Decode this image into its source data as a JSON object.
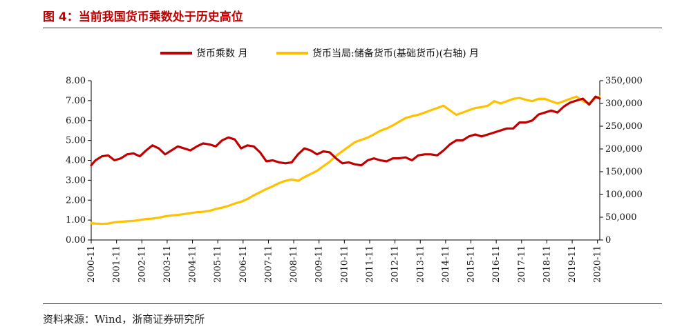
{
  "title": "图 4：当前我国货币乘数处于历史高位",
  "source": "资料来源：Wind，浙商证券研究所",
  "colors": {
    "multiplier": "#c00000",
    "base_money": "#ffc000",
    "title": "#c00000"
  },
  "chart_data": {
    "type": "line",
    "title": "图 4：当前我国货币乘数处于历史高位",
    "legend": [
      "货币乘数 月",
      "货币当局:储备货币(基础货币)(右轴) 月"
    ],
    "legend_position": "top",
    "left_axis": {
      "ylim": [
        0,
        8
      ],
      "ticks": [
        "0.00",
        "1.00",
        "2.00",
        "3.00",
        "4.00",
        "5.00",
        "6.00",
        "7.00",
        "8.00"
      ]
    },
    "right_axis": {
      "ylim": [
        0,
        350000
      ],
      "ticks": [
        "0",
        "50,000",
        "100,000",
        "150,000",
        "200,000",
        "250,000",
        "300,000",
        "350,000"
      ]
    },
    "x_ticks": [
      "2000-11",
      "2001-11",
      "2002-11",
      "2003-11",
      "2004-11",
      "2005-11",
      "2006-11",
      "2007-11",
      "2008-11",
      "2009-11",
      "2010-11",
      "2011-11",
      "2012-11",
      "2013-11",
      "2014-11",
      "2015-11",
      "2016-11",
      "2017-11",
      "2018-11",
      "2019-11",
      "2020-11"
    ],
    "series": [
      {
        "name": "货币乘数 月",
        "axis": "left",
        "x": [
          2000.83,
          2001.0,
          2001.25,
          2001.5,
          2001.75,
          2002.0,
          2002.25,
          2002.5,
          2002.75,
          2003.0,
          2003.25,
          2003.5,
          2003.75,
          2004.0,
          2004.25,
          2004.5,
          2004.75,
          2005.0,
          2005.25,
          2005.5,
          2005.75,
          2006.0,
          2006.25,
          2006.5,
          2006.75,
          2007.0,
          2007.25,
          2007.5,
          2007.75,
          2008.0,
          2008.25,
          2008.5,
          2008.75,
          2009.0,
          2009.25,
          2009.5,
          2009.75,
          2010.0,
          2010.25,
          2010.5,
          2010.75,
          2011.0,
          2011.25,
          2011.5,
          2011.75,
          2012.0,
          2012.25,
          2012.5,
          2012.75,
          2013.0,
          2013.25,
          2013.5,
          2013.75,
          2014.0,
          2014.25,
          2014.5,
          2014.75,
          2015.0,
          2015.25,
          2015.5,
          2015.75,
          2016.0,
          2016.25,
          2016.5,
          2016.75,
          2017.0,
          2017.25,
          2017.5,
          2017.75,
          2018.0,
          2018.25,
          2018.5,
          2018.75,
          2019.0,
          2019.25,
          2019.5,
          2019.75,
          2020.0,
          2020.25,
          2020.5,
          2020.75,
          2020.92
        ],
        "values": [
          3.75,
          4.0,
          4.2,
          4.25,
          4.0,
          4.1,
          4.3,
          4.35,
          4.2,
          4.5,
          4.75,
          4.6,
          4.3,
          4.5,
          4.7,
          4.6,
          4.5,
          4.7,
          4.85,
          4.8,
          4.7,
          5.0,
          5.15,
          5.05,
          4.6,
          4.75,
          4.7,
          4.4,
          3.95,
          4.0,
          3.9,
          3.85,
          3.9,
          4.3,
          4.6,
          4.5,
          4.3,
          4.45,
          4.4,
          4.1,
          3.85,
          3.9,
          3.8,
          3.75,
          4.0,
          4.1,
          4.0,
          3.95,
          4.1,
          4.1,
          4.15,
          4.0,
          4.25,
          4.3,
          4.3,
          4.25,
          4.5,
          4.8,
          5.0,
          5.0,
          5.2,
          5.3,
          5.2,
          5.3,
          5.4,
          5.5,
          5.6,
          5.6,
          5.9,
          5.9,
          6.0,
          6.3,
          6.4,
          6.5,
          6.4,
          6.7,
          6.9,
          7.0,
          7.1,
          6.8,
          7.2,
          7.1
        ]
      },
      {
        "name": "货币当局:储备货币(基础货币)(右轴) 月",
        "axis": "right",
        "x": [
          2000.83,
          2001.0,
          2001.25,
          2001.5,
          2001.75,
          2002.0,
          2002.25,
          2002.5,
          2002.75,
          2003.0,
          2003.25,
          2003.5,
          2003.75,
          2004.0,
          2004.25,
          2004.5,
          2004.75,
          2005.0,
          2005.25,
          2005.5,
          2005.75,
          2006.0,
          2006.25,
          2006.5,
          2006.75,
          2007.0,
          2007.25,
          2007.5,
          2007.75,
          2008.0,
          2008.25,
          2008.5,
          2008.75,
          2009.0,
          2009.25,
          2009.5,
          2009.75,
          2010.0,
          2010.25,
          2010.5,
          2010.75,
          2011.0,
          2011.25,
          2011.5,
          2011.75,
          2012.0,
          2012.25,
          2012.5,
          2012.75,
          2013.0,
          2013.25,
          2013.5,
          2013.75,
          2014.0,
          2014.25,
          2014.5,
          2014.75,
          2015.0,
          2015.25,
          2015.5,
          2015.75,
          2016.0,
          2016.25,
          2016.5,
          2016.75,
          2017.0,
          2017.25,
          2017.5,
          2017.75,
          2018.0,
          2018.25,
          2018.5,
          2018.75,
          2019.0,
          2019.25,
          2019.5,
          2019.75,
          2020.0,
          2020.25,
          2020.5,
          2020.75,
          2020.92
        ],
        "values": [
          37000,
          36000,
          35500,
          36000,
          39000,
          40000,
          41000,
          42000,
          44000,
          46000,
          47000,
          49000,
          52000,
          54000,
          55000,
          57000,
          59000,
          61000,
          62000,
          64000,
          68000,
          71000,
          75000,
          80000,
          84000,
          90000,
          98000,
          105000,
          112000,
          118000,
          125000,
          130000,
          133000,
          130000,
          138000,
          145000,
          152000,
          162000,
          172000,
          185000,
          195000,
          205000,
          215000,
          220000,
          225000,
          232000,
          240000,
          245000,
          252000,
          260000,
          268000,
          272000,
          275000,
          280000,
          285000,
          290000,
          295000,
          285000,
          275000,
          280000,
          285000,
          290000,
          292000,
          295000,
          305000,
          300000,
          305000,
          310000,
          312000,
          308000,
          305000,
          310000,
          310000,
          305000,
          300000,
          305000,
          310000,
          315000,
          305000,
          300000,
          312000,
          315000
        ]
      }
    ]
  }
}
